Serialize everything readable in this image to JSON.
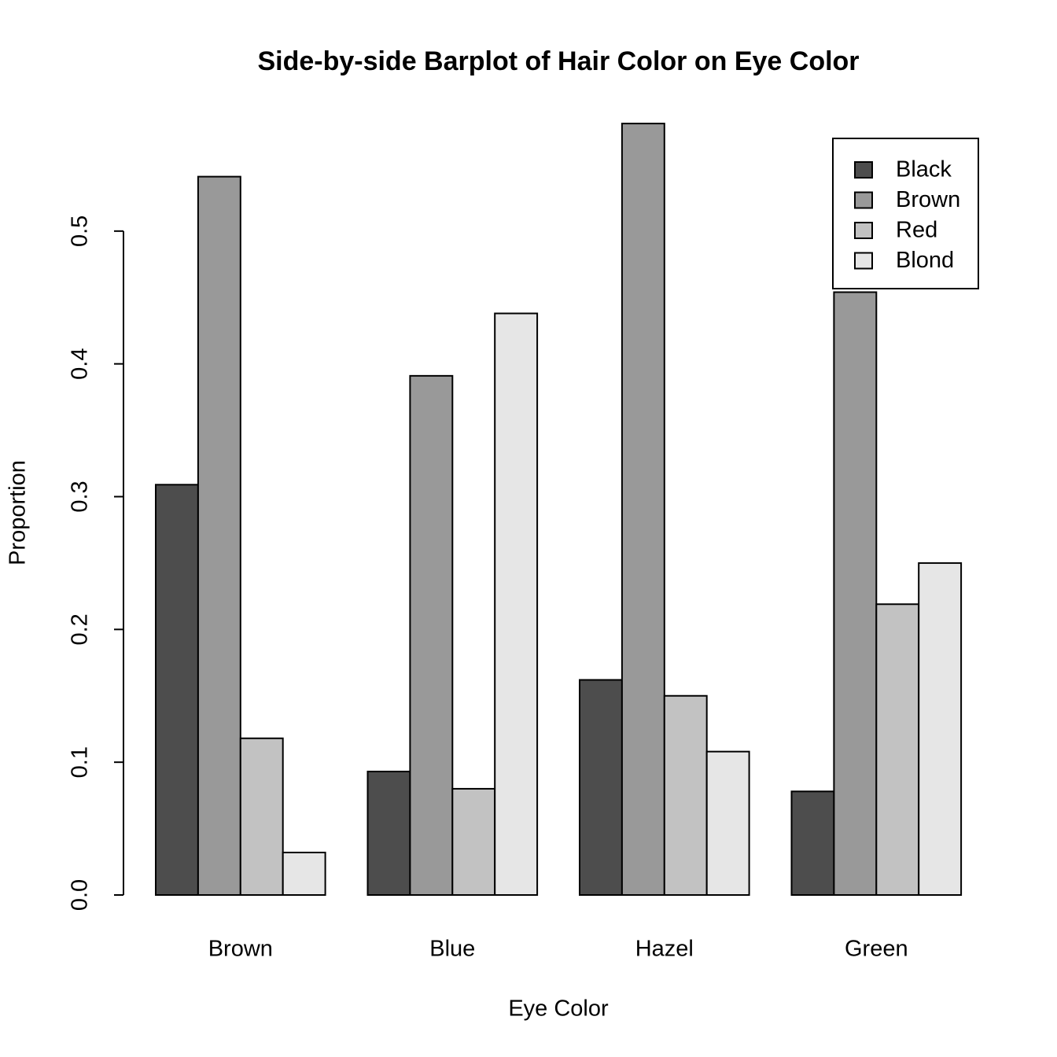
{
  "chart_data": {
    "type": "bar",
    "title": "Side-by-side Barplot of Hair Color on Eye Color",
    "x_label": "Eye Color",
    "y_label": "Proportion",
    "categories": [
      "Brown",
      "Blue",
      "Hazel",
      "Green"
    ],
    "series": [
      {
        "name": "Black",
        "color": "#4d4d4d",
        "values": [
          0.309,
          0.093,
          0.162,
          0.078
        ]
      },
      {
        "name": "Brown",
        "color": "#999999",
        "values": [
          0.541,
          0.391,
          0.581,
          0.454
        ]
      },
      {
        "name": "Red",
        "color": "#c2c2c2",
        "values": [
          0.118,
          0.08,
          0.15,
          0.219
        ]
      },
      {
        "name": "Blond",
        "color": "#e6e6e6",
        "values": [
          0.032,
          0.438,
          0.108,
          0.25
        ]
      }
    ],
    "ylim": [
      0,
      0.6
    ],
    "yticks": [
      {
        "value": 0,
        "label": "0.0"
      },
      0.1,
      0.2,
      0.3,
      0.4,
      0.5
    ],
    "legend": "top-right"
  }
}
